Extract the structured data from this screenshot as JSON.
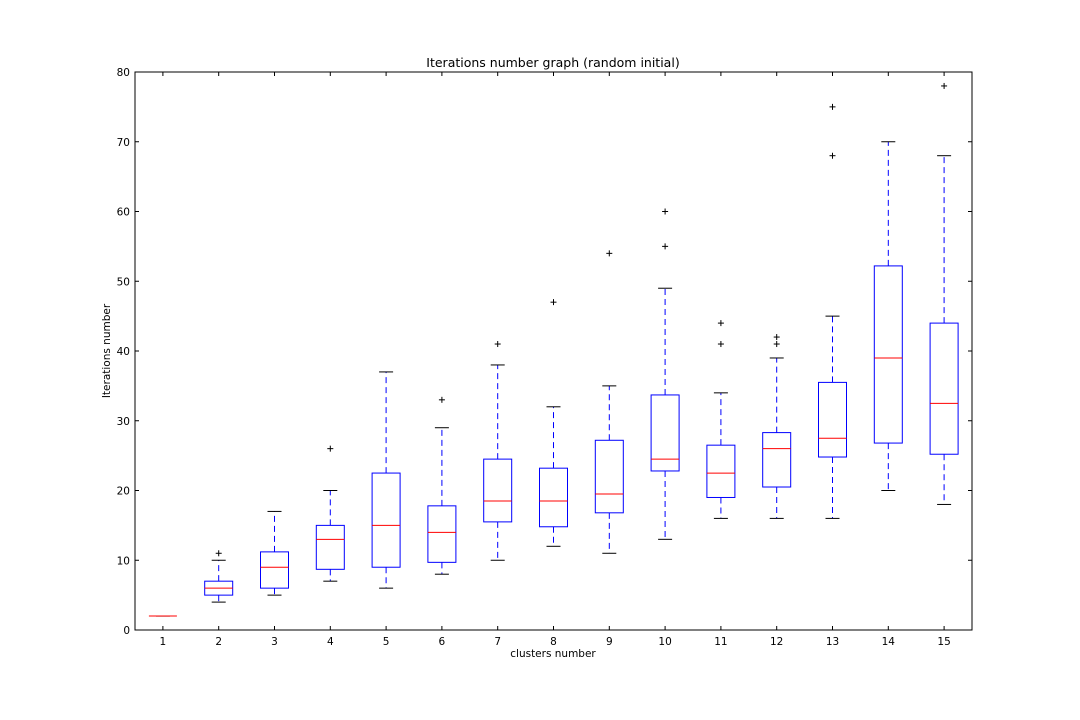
{
  "chart_data": {
    "type": "box",
    "title": "Iterations number graph (random initial)",
    "xlabel": "clusters number",
    "ylabel": "Iterations number",
    "ylim": [
      0,
      80
    ],
    "yticks": [
      0,
      10,
      20,
      30,
      40,
      50,
      60,
      70,
      80
    ],
    "xlim": [
      0.5,
      15.5
    ],
    "categories": [
      "1",
      "2",
      "3",
      "4",
      "5",
      "6",
      "7",
      "8",
      "9",
      "10",
      "11",
      "12",
      "13",
      "14",
      "15"
    ],
    "grid": false,
    "colors": {
      "box": "#0000ff",
      "median": "#ff0000",
      "whisker": "#0000ff",
      "cap": "#000000",
      "flier": "#000000"
    },
    "boxes": [
      {
        "category": "1",
        "whislo": 2,
        "q1": 2,
        "median": 2,
        "q3": 2,
        "whishi": 2,
        "fliers": []
      },
      {
        "category": "2",
        "whislo": 4,
        "q1": 5,
        "median": 6,
        "q3": 7,
        "whishi": 10,
        "fliers": [
          11
        ]
      },
      {
        "category": "3",
        "whislo": 5,
        "q1": 6,
        "median": 9,
        "q3": 11.2,
        "whishi": 17,
        "fliers": []
      },
      {
        "category": "4",
        "whislo": 7,
        "q1": 8.7,
        "median": 13,
        "q3": 15,
        "whishi": 20,
        "fliers": [
          26
        ]
      },
      {
        "category": "5",
        "whislo": 6,
        "q1": 9,
        "median": 15,
        "q3": 22.5,
        "whishi": 37,
        "fliers": []
      },
      {
        "category": "6",
        "whislo": 8,
        "q1": 9.7,
        "median": 14,
        "q3": 17.8,
        "whishi": 29,
        "fliers": [
          33
        ]
      },
      {
        "category": "7",
        "whislo": 10,
        "q1": 15.5,
        "median": 18.5,
        "q3": 24.5,
        "whishi": 38,
        "fliers": [
          41
        ]
      },
      {
        "category": "8",
        "whislo": 12,
        "q1": 14.8,
        "median": 18.5,
        "q3": 23.2,
        "whishi": 32,
        "fliers": [
          47
        ]
      },
      {
        "category": "9",
        "whislo": 11,
        "q1": 16.8,
        "median": 19.5,
        "q3": 27.2,
        "whishi": 35,
        "fliers": [
          54
        ]
      },
      {
        "category": "10",
        "whislo": 13,
        "q1": 22.8,
        "median": 24.5,
        "q3": 33.7,
        "whishi": 49,
        "fliers": [
          55,
          60
        ]
      },
      {
        "category": "11",
        "whislo": 16,
        "q1": 19,
        "median": 22.5,
        "q3": 26.5,
        "whishi": 34,
        "fliers": [
          41,
          44
        ]
      },
      {
        "category": "12",
        "whislo": 16,
        "q1": 20.5,
        "median": 26,
        "q3": 28.3,
        "whishi": 39,
        "fliers": [
          41,
          42
        ]
      },
      {
        "category": "13",
        "whislo": 16,
        "q1": 24.8,
        "median": 27.5,
        "q3": 35.5,
        "whishi": 45,
        "fliers": [
          68,
          75
        ]
      },
      {
        "category": "14",
        "whislo": 20,
        "q1": 26.8,
        "median": 39,
        "q3": 52.2,
        "whishi": 70,
        "fliers": []
      },
      {
        "category": "15",
        "whislo": 18,
        "q1": 25.2,
        "median": 32.5,
        "q3": 44,
        "whishi": 68,
        "fliers": [
          78
        ]
      }
    ]
  }
}
